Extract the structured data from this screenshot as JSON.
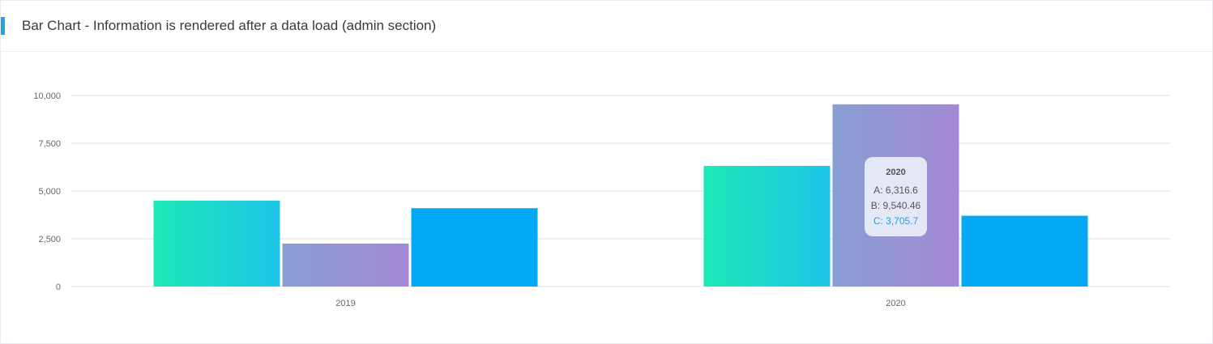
{
  "card": {
    "title": "Bar Chart - Information is rendered after a data load (admin section)"
  },
  "chart_data": {
    "type": "bar",
    "title": "",
    "xlabel": "",
    "ylabel": "",
    "categories": [
      "2019",
      "2020"
    ],
    "series": [
      {
        "name": "A",
        "values": [
          4500,
          6316.6
        ]
      },
      {
        "name": "B",
        "values": [
          2250,
          9540.46
        ]
      },
      {
        "name": "C",
        "values": [
          4100,
          3705.7
        ]
      }
    ],
    "ylim": [
      0,
      10000
    ],
    "yticks": [
      0,
      2500,
      5000,
      7500,
      10000
    ],
    "ytick_labels": [
      "0",
      "2,500",
      "5,000",
      "7,500",
      "10,000"
    ],
    "grid": true,
    "legend": "none",
    "colors": {
      "A": [
        "#1de9b6",
        "#1dc4e9"
      ],
      "B": [
        "#899ed4",
        "#a389d4"
      ],
      "C": [
        "#04a9f5",
        "#04a9f5"
      ]
    }
  },
  "tooltip": {
    "title": "2020",
    "a": "A: 6,316.6",
    "b": "B: 9,540.46",
    "c": "C: 3,705.7"
  }
}
